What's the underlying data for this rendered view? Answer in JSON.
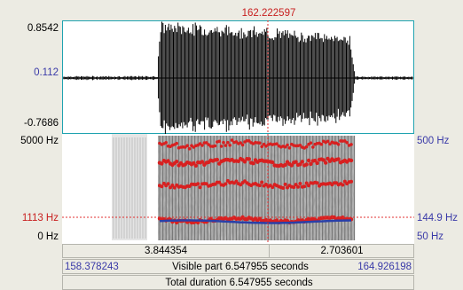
{
  "cursor": {
    "time_label": "162.222597"
  },
  "waveform": {
    "y_max": "0.8542",
    "y_cursor": "0.112",
    "y_min": "-0.7686"
  },
  "spectrogram": {
    "freq_max": "5000 Hz",
    "freq_cursor": "1113 Hz",
    "freq_min": "0 Hz",
    "pitch_max": "500 Hz",
    "pitch_cursor": "144.9 Hz",
    "pitch_min": "50 Hz"
  },
  "selection": {
    "left_duration": "3.844354",
    "right_duration": "2.703601"
  },
  "visible": {
    "start": "158.378243",
    "label": "Visible part 6.547955 seconds",
    "end": "164.926198"
  },
  "total": {
    "label": "Total duration 6.547955 seconds"
  },
  "colors": {
    "waveform_border": "#1fa3b0",
    "cursor": "#e03030",
    "pitch": "#2a3fa8",
    "formant": "#d82020",
    "axis_blue": "#3a3aa8"
  }
}
